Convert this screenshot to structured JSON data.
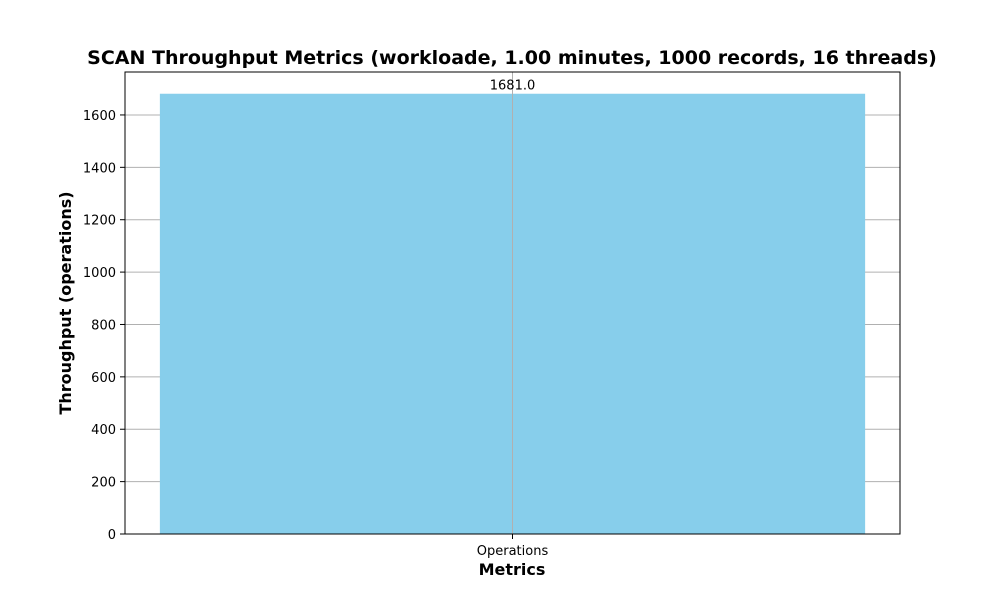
{
  "chart_data": {
    "type": "bar",
    "title": "SCAN Throughput Metrics (workloade, 1.00 minutes, 1000 records, 16 threads)",
    "xlabel": "Metrics",
    "ylabel": "Throughput (operations)",
    "categories": [
      "Operations"
    ],
    "values": [
      1681.0
    ],
    "data_labels": [
      "1681.0"
    ],
    "ylim": [
      0,
      1764
    ],
    "yticks": [
      0,
      200,
      400,
      600,
      800,
      1000,
      1200,
      1400,
      1600
    ],
    "grid": true,
    "colors": {
      "bar": "#87ceeb"
    }
  }
}
